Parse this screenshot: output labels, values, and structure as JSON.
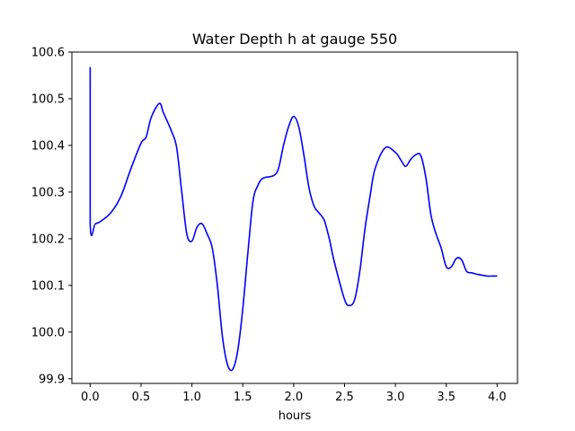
{
  "chart_data": {
    "type": "line",
    "title": "Water Depth h at gauge 550",
    "xlabel": "hours",
    "ylabel": "",
    "xlim": [
      -0.18,
      4.2
    ],
    "ylim": [
      99.89,
      100.6
    ],
    "xticks": [
      0.0,
      0.5,
      1.0,
      1.5,
      2.0,
      2.5,
      3.0,
      3.5,
      4.0
    ],
    "xtick_labels": [
      "0.0",
      "0.5",
      "1.0",
      "1.5",
      "2.0",
      "2.5",
      "3.0",
      "3.5",
      "4.0"
    ],
    "yticks": [
      99.9,
      100.0,
      100.1,
      100.2,
      100.3,
      100.4,
      100.5,
      100.6
    ],
    "ytick_labels": [
      "99.9",
      "100.0",
      "100.1",
      "100.2",
      "100.3",
      "100.4",
      "100.5",
      "100.6"
    ],
    "grid": false,
    "series": [
      {
        "color": "#0000ff",
        "x": [
          0.0,
          0.0,
          0.05,
          0.1,
          0.2,
          0.3,
          0.4,
          0.5,
          0.55,
          0.6,
          0.68,
          0.72,
          0.8,
          0.85,
          0.9,
          0.95,
          1.0,
          1.05,
          1.1,
          1.15,
          1.2,
          1.25,
          1.3,
          1.35,
          1.4,
          1.45,
          1.5,
          1.55,
          1.6,
          1.65,
          1.7,
          1.8,
          1.85,
          1.9,
          1.95,
          2.0,
          2.05,
          2.1,
          2.15,
          2.2,
          2.25,
          2.3,
          2.35,
          2.4,
          2.5,
          2.55,
          2.6,
          2.65,
          2.7,
          2.75,
          2.8,
          2.9,
          3.0,
          3.05,
          3.1,
          3.15,
          3.2,
          3.25,
          3.3,
          3.35,
          3.4,
          3.45,
          3.5,
          3.55,
          3.6,
          3.65,
          3.7,
          3.75,
          3.8,
          3.85,
          3.9,
          3.95,
          4.0
        ],
        "y": [
          100.568,
          100.232,
          100.232,
          100.237,
          100.255,
          100.29,
          100.35,
          100.405,
          100.418,
          100.46,
          100.49,
          100.47,
          100.43,
          100.395,
          100.3,
          100.21,
          100.195,
          100.225,
          100.232,
          100.21,
          100.18,
          100.1,
          99.99,
          99.93,
          99.92,
          99.96,
          100.05,
          100.17,
          100.28,
          100.315,
          100.33,
          100.335,
          100.35,
          100.4,
          100.44,
          100.462,
          100.44,
          100.38,
          100.31,
          100.27,
          100.255,
          100.24,
          100.2,
          100.15,
          100.07,
          100.057,
          100.07,
          100.13,
          100.22,
          100.29,
          100.35,
          100.395,
          100.385,
          100.37,
          100.355,
          100.37,
          100.38,
          100.378,
          100.33,
          100.25,
          100.21,
          100.18,
          100.14,
          100.14,
          100.158,
          100.155,
          100.13,
          100.127,
          100.124,
          100.122,
          100.12,
          100.12,
          100.12
        ]
      }
    ]
  }
}
